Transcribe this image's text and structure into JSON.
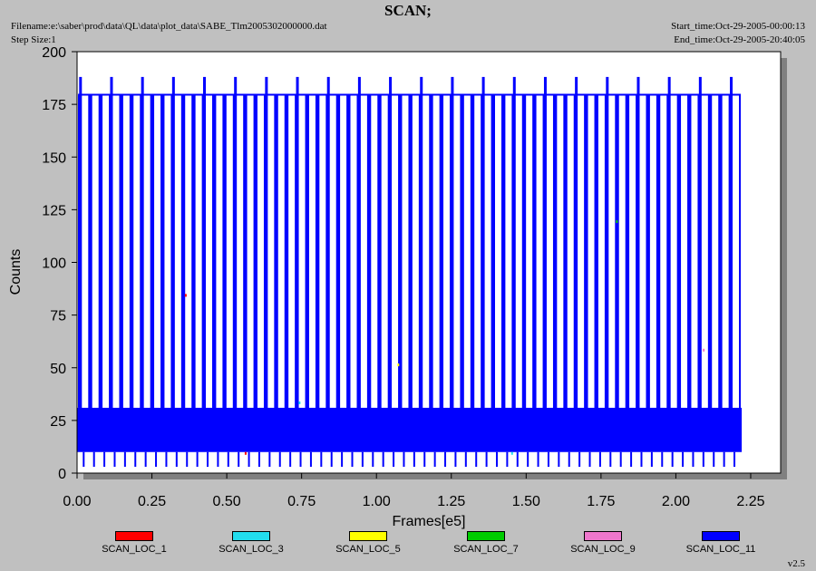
{
  "header": {
    "title": "SCAN;",
    "filename": "Filename:e:\\saber\\prod\\data\\QL\\data\\plot_data\\SABE_Tlm2005302000000.dat",
    "step_size": "Step Size:1",
    "start_time": "Start_time:Oct-29-2005-00:00:13",
    "end_time": "End_time:Oct-29-2005-20:40:05"
  },
  "footer": {
    "version": "v2.5"
  },
  "chart_data": {
    "type": "line",
    "title": "SCAN;",
    "xlabel": "Frames[e5]",
    "ylabel": "Counts",
    "xlim": [
      0.0,
      2.35
    ],
    "ylim": [
      0,
      200
    ],
    "x_ticks": [
      "0.00",
      "0.25",
      "0.50",
      "0.75",
      "1.00",
      "1.25",
      "1.50",
      "1.75",
      "2.00",
      "2.25"
    ],
    "y_ticks": [
      "0",
      "25",
      "50",
      "75",
      "100",
      "125",
      "150",
      "175",
      "200"
    ],
    "grid": false,
    "legend_position": "bottom",
    "series": [
      {
        "name": "SCAN_LOC_1",
        "color": "#ff0000"
      },
      {
        "name": "SCAN_LOC_3",
        "color": "#22ddee"
      },
      {
        "name": "SCAN_LOC_5",
        "color": "#ffff00"
      },
      {
        "name": "SCAN_LOC_7",
        "color": "#00cc00"
      },
      {
        "name": "SCAN_LOC_9",
        "color": "#ee77cc"
      },
      {
        "name": "SCAN_LOC_11",
        "color": "#0000ff",
        "baseline_band": [
          10,
          31
        ],
        "data_end": 2.22,
        "scan_spike_start": 0.01,
        "scan_spike_spacing": 0.0345,
        "scan_spike_count": 64,
        "scan_spike_level": 180,
        "tall_spike_level": 188
      }
    ]
  }
}
